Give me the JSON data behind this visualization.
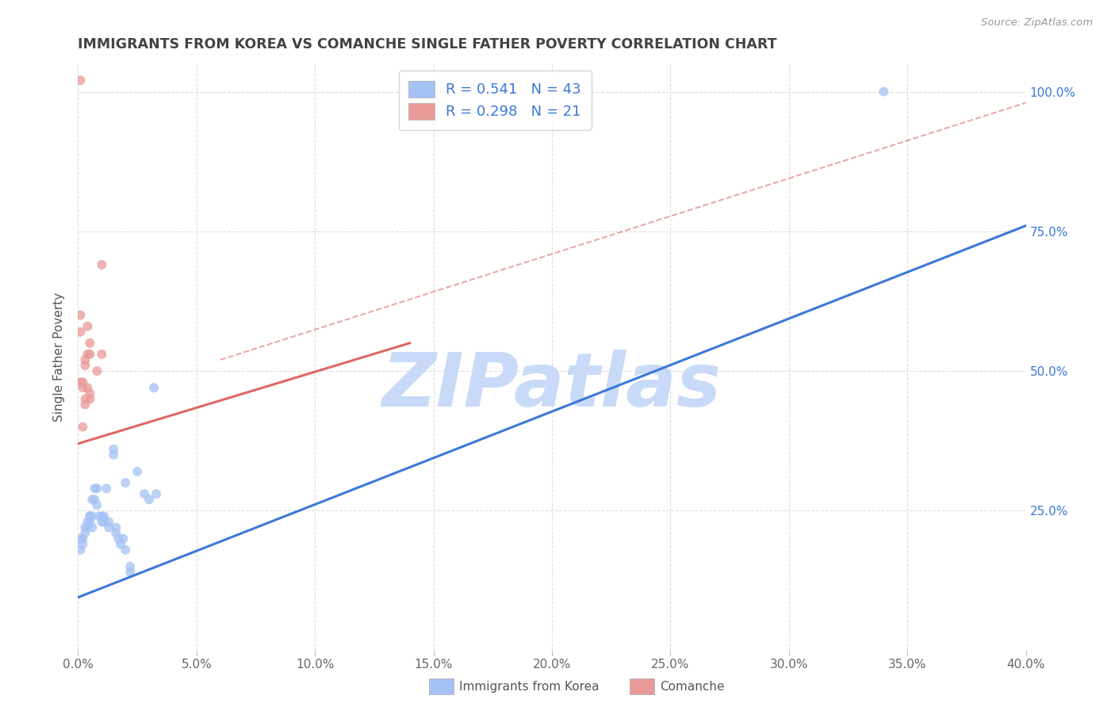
{
  "title": "IMMIGRANTS FROM KOREA VS COMANCHE SINGLE FATHER POVERTY CORRELATION CHART",
  "source": "Source: ZipAtlas.com",
  "ylabel": "Single Father Poverty",
  "legend_blue_label": "Immigrants from Korea",
  "legend_pink_label": "Comanche",
  "R_blue": 0.541,
  "N_blue": 43,
  "R_pink": 0.298,
  "N_pink": 21,
  "blue_color": "#a4c2f4",
  "pink_color": "#ea9999",
  "regression_blue_color": "#3c78d8",
  "regression_pink_color": "#e06666",
  "regression_dashed_color": "#e06666",
  "watermark": "ZIPatlas",
  "watermark_color": "#c9daf8",
  "title_color": "#434343",
  "source_color": "#999999",
  "blue_scatter": [
    [
      0.001,
      0.2
    ],
    [
      0.002,
      0.19
    ],
    [
      0.001,
      0.18
    ],
    [
      0.002,
      0.2
    ],
    [
      0.003,
      0.21
    ],
    [
      0.003,
      0.22
    ],
    [
      0.004,
      0.23
    ],
    [
      0.004,
      0.22
    ],
    [
      0.005,
      0.24
    ],
    [
      0.005,
      0.23
    ],
    [
      0.005,
      0.24
    ],
    [
      0.006,
      0.22
    ],
    [
      0.006,
      0.24
    ],
    [
      0.006,
      0.27
    ],
    [
      0.007,
      0.29
    ],
    [
      0.007,
      0.27
    ],
    [
      0.008,
      0.26
    ],
    [
      0.008,
      0.29
    ],
    [
      0.009,
      0.24
    ],
    [
      0.01,
      0.24
    ],
    [
      0.01,
      0.23
    ],
    [
      0.011,
      0.24
    ],
    [
      0.011,
      0.23
    ],
    [
      0.012,
      0.29
    ],
    [
      0.013,
      0.22
    ],
    [
      0.013,
      0.23
    ],
    [
      0.015,
      0.35
    ],
    [
      0.015,
      0.36
    ],
    [
      0.016,
      0.21
    ],
    [
      0.016,
      0.22
    ],
    [
      0.017,
      0.2
    ],
    [
      0.018,
      0.19
    ],
    [
      0.019,
      0.2
    ],
    [
      0.02,
      0.3
    ],
    [
      0.02,
      0.18
    ],
    [
      0.022,
      0.15
    ],
    [
      0.022,
      0.14
    ],
    [
      0.025,
      0.32
    ],
    [
      0.028,
      0.28
    ],
    [
      0.03,
      0.27
    ],
    [
      0.032,
      0.47
    ],
    [
      0.033,
      0.28
    ],
    [
      0.34,
      1.0
    ]
  ],
  "pink_scatter": [
    [
      0.001,
      0.57
    ],
    [
      0.001,
      0.48
    ],
    [
      0.001,
      0.6
    ],
    [
      0.001,
      1.02
    ],
    [
      0.002,
      0.4
    ],
    [
      0.002,
      0.47
    ],
    [
      0.002,
      0.48
    ],
    [
      0.003,
      0.44
    ],
    [
      0.003,
      0.45
    ],
    [
      0.003,
      0.51
    ],
    [
      0.003,
      0.52
    ],
    [
      0.004,
      0.53
    ],
    [
      0.004,
      0.58
    ],
    [
      0.004,
      0.47
    ],
    [
      0.005,
      0.45
    ],
    [
      0.005,
      0.46
    ],
    [
      0.005,
      0.53
    ],
    [
      0.005,
      0.55
    ],
    [
      0.008,
      0.5
    ],
    [
      0.01,
      0.53
    ],
    [
      0.01,
      0.69
    ]
  ],
  "xlim": [
    0.0,
    0.4
  ],
  "ylim": [
    0.0,
    1.05
  ],
  "blue_line_x": [
    0.0,
    0.4
  ],
  "blue_line_y": [
    0.095,
    0.76
  ],
  "pink_line_x": [
    0.0,
    0.14
  ],
  "pink_line_y": [
    0.37,
    0.55
  ],
  "dashed_line_x": [
    0.06,
    0.4
  ],
  "dashed_line_y": [
    0.52,
    0.98
  ],
  "marker_size": 75
}
